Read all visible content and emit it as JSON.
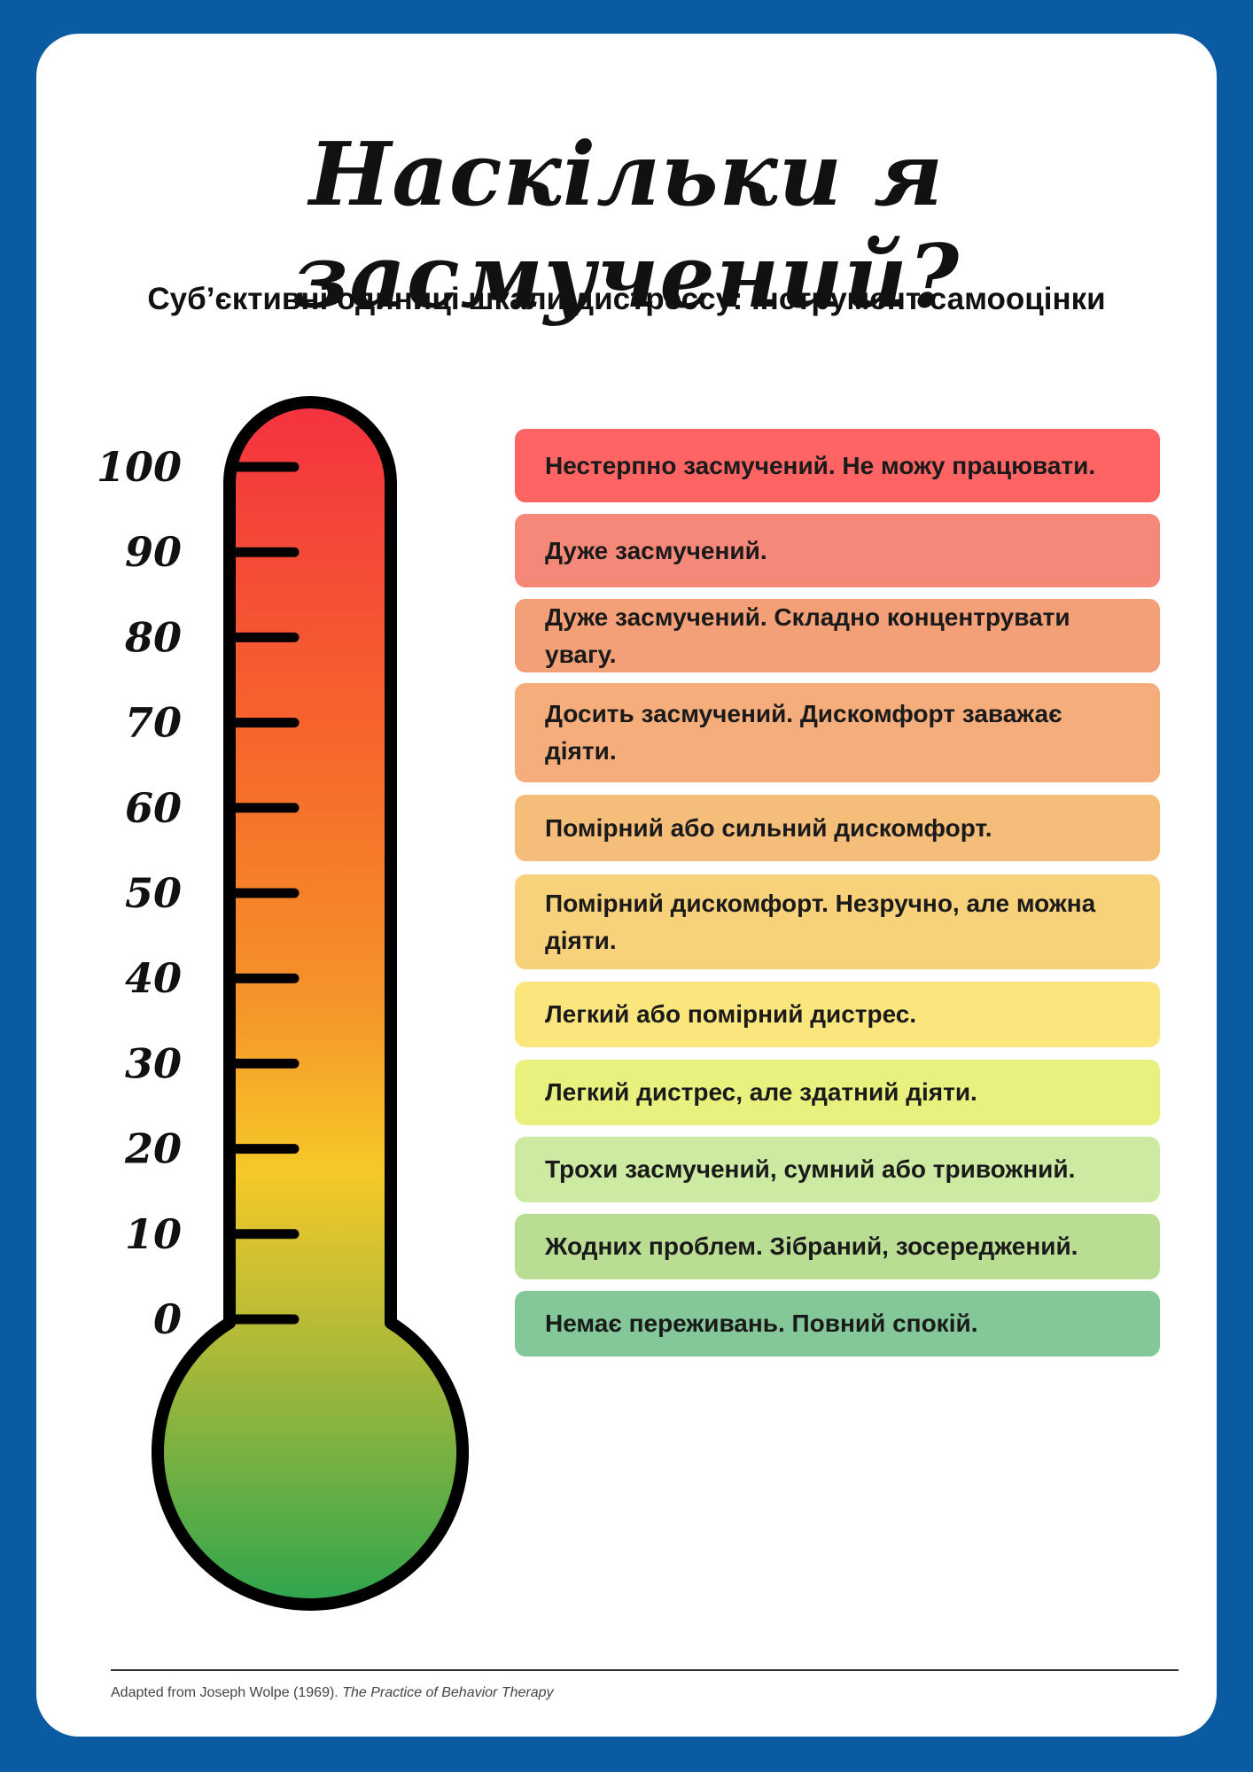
{
  "title": "Наскільки я засмучений?",
  "subtitle": "Суб’єктивні одиниці шкали дистрессу: інструмент самооцінки",
  "scale": {
    "ticks": [
      "100",
      "90",
      "80",
      "70",
      "60",
      "50",
      "40",
      "30",
      "20",
      "10",
      "0"
    ]
  },
  "levels": [
    {
      "text": "Нестерпно засмучений. Не можу працювати.",
      "color": "#fe6464"
    },
    {
      "text": "Дуже засмучений.",
      "color": "#f58878"
    },
    {
      "text": "Дуже засмучений. Складно концентрувати увагу.",
      "color": "#f3a079"
    },
    {
      "text": "Досить засмучений. Дискомфорт заважає діяти.",
      "color": "#f4ad7b"
    },
    {
      "text": "Помірний або сильний дискомфорт.",
      "color": "#f4bd79"
    },
    {
      "text": "Помірний дискомфорт. Незручно, але можна діяти.",
      "color": "#f8d27a"
    },
    {
      "text": "Легкий або помірний дистрес.",
      "color": "#fbe67e"
    },
    {
      "text": "Легкий дистрес, але здатний діяти.",
      "color": "#e8f07e"
    },
    {
      "text": "Трохи засмучений, сумний або тривожний.",
      "color": "#cdeaa2"
    },
    {
      "text": "Жодних проблем. Зібраний, зосереджений.",
      "color": "#badd94"
    },
    {
      "text": "Немає переживань. Повний спокій.",
      "color": "#84c798"
    }
  ],
  "credit": {
    "prefix": "Adapted from Joseph Wolpe (1969). ",
    "book": "The Practice of Behavior Therapy"
  }
}
